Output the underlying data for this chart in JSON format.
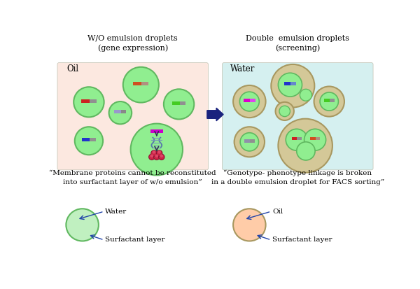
{
  "title_left": "W/O emulsion droplets\n(gene expression)",
  "title_right": "Double  emulsion droplets\n(screening)",
  "label_left_box": "Oil",
  "label_right_box": "Water",
  "caption_left": "“Membrane proteins cannot be reconstituted\ninto surfactant layer of w/o emulsion”",
  "caption_right": "“Genotype- phenotype linkage is broken\nin a double emulsion droplet for FACS sorting”",
  "bg_left": "#fce8e0",
  "bg_right": "#d5f0f0",
  "green_fill": "#90ee90",
  "green_edge": "#60b860",
  "tan_fill": "#d4c898",
  "tan_edge": "#a89860",
  "light_green_fill": "#c0f0c0",
  "salmon_fill": "#ffcca8",
  "arrow_color": "#1a237e",
  "text_color": "#000000",
  "label_color": "#2244aa",
  "panel_edge": "#c0c0b0"
}
